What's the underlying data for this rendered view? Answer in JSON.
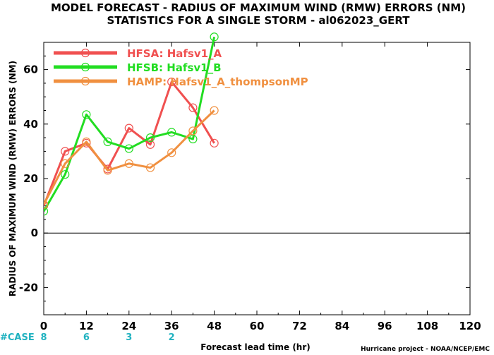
{
  "chart_data": {
    "type": "line",
    "title_line1": "MODEL FORECAST - RADIUS OF MAXIMUM WIND (RMW) ERRORS (NM)",
    "title_line2": "STATISTICS FOR A SINGLE STORM - al062023_GERT",
    "xlabel": "Forecast lead time (hr)",
    "ylabel": "RADIUS OF MAXIMUM WIND (RMW) ERRORS (NM)",
    "xlim": [
      0,
      120
    ],
    "ylim": [
      -30,
      70
    ],
    "xticks": [
      0,
      12,
      24,
      36,
      48,
      60,
      72,
      84,
      96,
      108,
      120
    ],
    "yticks": [
      -20,
      0,
      20,
      40,
      60
    ],
    "zero_line": 0,
    "legend_position": "top-left",
    "series": [
      {
        "name": "HFSA: Hafsv1_A",
        "color": "#f05050",
        "x": [
          0,
          6,
          12,
          18,
          24,
          30,
          36,
          42,
          48
        ],
        "values": [
          10,
          30,
          33,
          23.5,
          38.5,
          32.5,
          55.5,
          46,
          33
        ]
      },
      {
        "name": "HFSB: Hafsv1_B",
        "color": "#22dd22",
        "x": [
          0,
          6,
          12,
          18,
          24,
          30,
          36,
          42,
          48
        ],
        "values": [
          8,
          21.5,
          43.5,
          33.5,
          31,
          35,
          37,
          34.5,
          72
        ]
      },
      {
        "name": "HAMP: Hafsv1_A_thompsonMP",
        "color": "#f09040",
        "x": [
          0,
          6,
          12,
          18,
          24,
          30,
          36,
          42,
          48
        ],
        "values": [
          10.5,
          25.5,
          33.5,
          23,
          25.5,
          24,
          29.5,
          37.5,
          45
        ]
      }
    ],
    "case_label": "#CASE",
    "case_counts": [
      {
        "x": 0,
        "n": "8"
      },
      {
        "x": 12,
        "n": "6"
      },
      {
        "x": 24,
        "n": "3"
      },
      {
        "x": 36,
        "n": "2"
      }
    ],
    "case_color": "#20b2c0",
    "credit": "Hurricane project - NOAA/NCEP/EMC"
  }
}
